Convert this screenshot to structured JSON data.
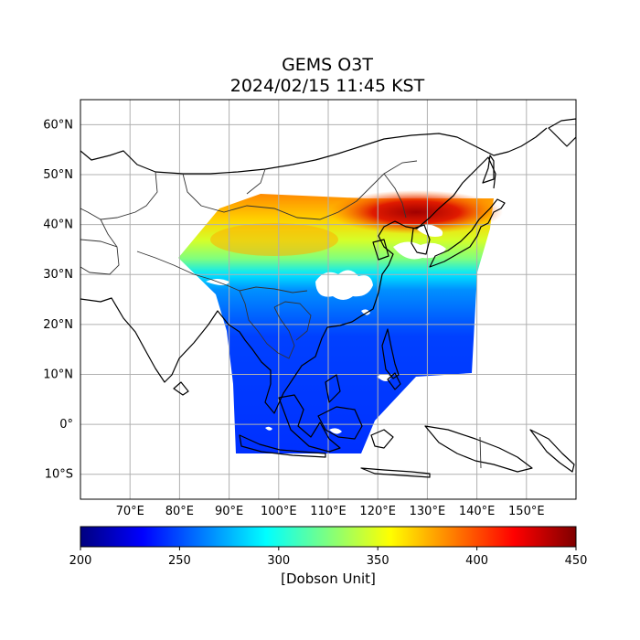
{
  "title": {
    "line1": "GEMS O3T",
    "line2": "2024/02/15 11:45 KST"
  },
  "map": {
    "lon_range": [
      60,
      160
    ],
    "lat_range": [
      -15,
      65
    ],
    "lon_ticks": [
      {
        "value": 70,
        "label": "70°E"
      },
      {
        "value": 80,
        "label": "80°E"
      },
      {
        "value": 90,
        "label": "90°E"
      },
      {
        "value": 100,
        "label": "100°E"
      },
      {
        "value": 110,
        "label": "110°E"
      },
      {
        "value": 120,
        "label": "120°E"
      },
      {
        "value": 130,
        "label": "130°E"
      },
      {
        "value": 140,
        "label": "140°E"
      },
      {
        "value": 150,
        "label": "150°E"
      }
    ],
    "lat_ticks": [
      {
        "value": 60,
        "label": "60°N"
      },
      {
        "value": 50,
        "label": "50°N"
      },
      {
        "value": 40,
        "label": "40°N"
      },
      {
        "value": 30,
        "label": "30°N"
      },
      {
        "value": 20,
        "label": "20°N"
      },
      {
        "value": 10,
        "label": "10°N"
      },
      {
        "value": 0,
        "label": "0°"
      },
      {
        "value": -10,
        "label": "10°S"
      }
    ],
    "grid": true,
    "colormap": "jet"
  },
  "colorbar": {
    "min": 200,
    "max": 450,
    "ticks": [
      200,
      250,
      300,
      350,
      400,
      450
    ],
    "label": "[Dobson Unit]",
    "colors": [
      "#00007f",
      "#0000ff",
      "#007fff",
      "#00ffff",
      "#7fff7f",
      "#ffff00",
      "#ff7f00",
      "#ff0000",
      "#7f0000"
    ]
  }
}
